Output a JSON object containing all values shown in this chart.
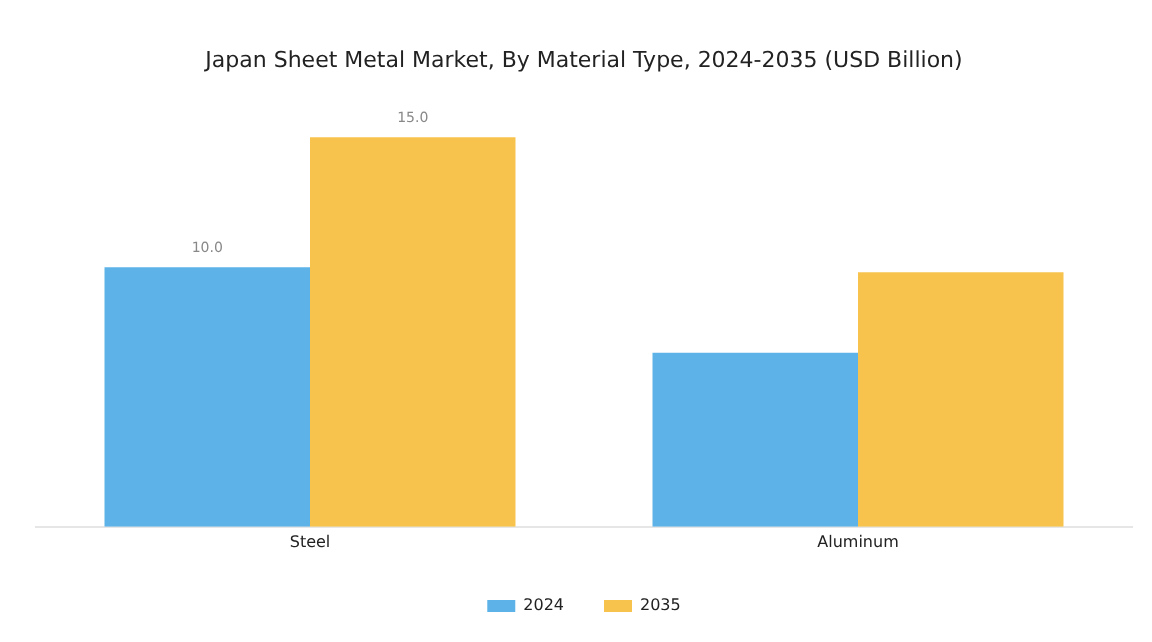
{
  "chart_data": {
    "type": "bar",
    "title": "Japan Sheet Metal Market, By Material Type, 2024-2035 (USD Billion)",
    "categories": [
      "Steel",
      "Aluminum"
    ],
    "series": [
      {
        "name": "2024",
        "color": "#5db3e8",
        "values": [
          10.0,
          6.7
        ],
        "value_labels": [
          "10.0",
          null
        ]
      },
      {
        "name": "2035",
        "color": "#f8c34c",
        "values": [
          15.0,
          9.8
        ],
        "value_labels": [
          "15.0",
          null
        ]
      }
    ],
    "legend": "bottom",
    "grid": false
  }
}
